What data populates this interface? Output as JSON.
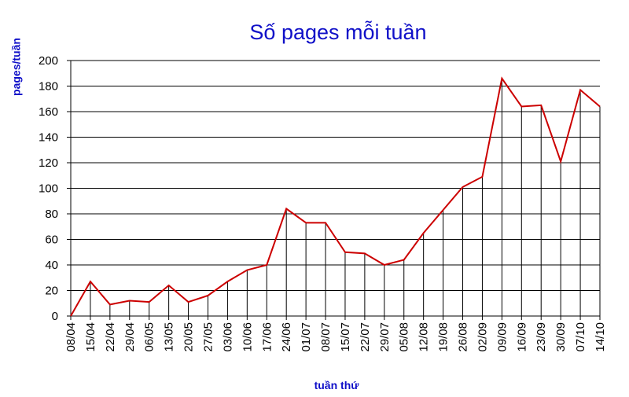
{
  "chart_data": {
    "type": "line",
    "title": "Số pages mỗi tuần",
    "y_label": "pages/tuần",
    "x_label": "tuần thứ",
    "categories": [
      "08/04",
      "15/04",
      "22/04",
      "29/04",
      "06/05",
      "13/05",
      "20/05",
      "27/05",
      "03/06",
      "10/06",
      "17/06",
      "24/06",
      "01/07",
      "08/07",
      "15/07",
      "22/07",
      "29/07",
      "05/08",
      "12/08",
      "19/08",
      "26/08",
      "02/09",
      "09/09",
      "16/09",
      "23/09",
      "30/09",
      "07/10",
      "14/10"
    ],
    "values": [
      0,
      27,
      9,
      12,
      11,
      24,
      11,
      16,
      27,
      36,
      40,
      84,
      73,
      73,
      50,
      49,
      40,
      44,
      65,
      83,
      101,
      109,
      186,
      164,
      165,
      121,
      177,
      164
    ],
    "color": "#cc0000",
    "drop_lines": true,
    "grid": true,
    "ylim": [
      0,
      200
    ],
    "yticks": [
      0,
      20,
      40,
      60,
      80,
      100,
      120,
      140,
      160,
      180,
      200
    ]
  }
}
